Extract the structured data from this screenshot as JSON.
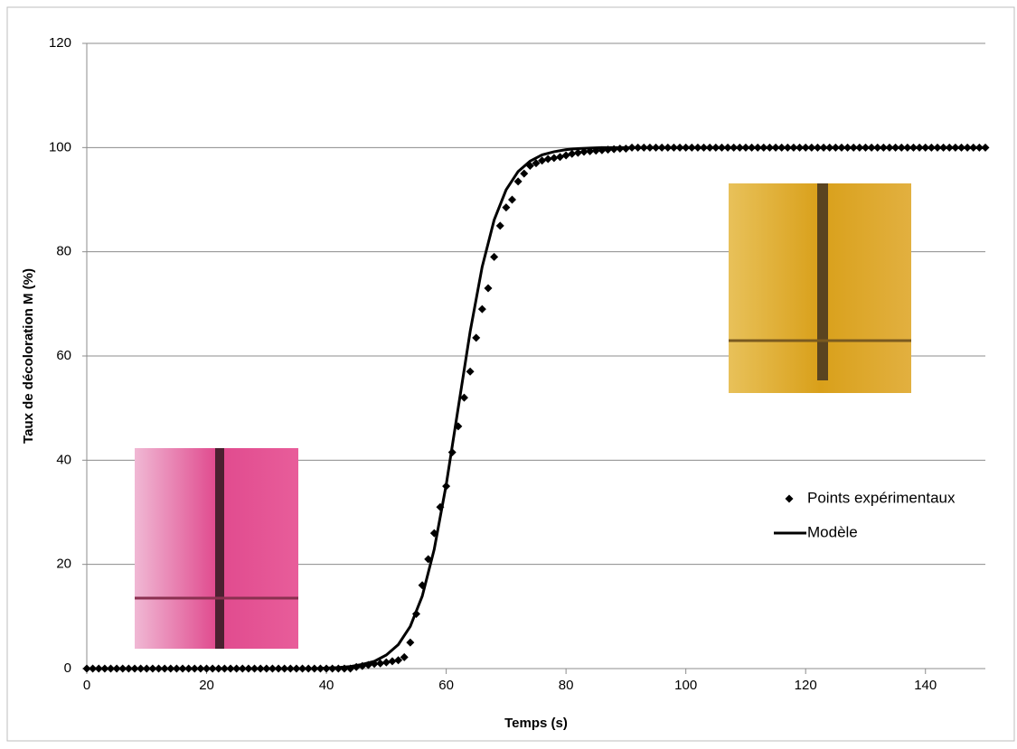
{
  "chart_data": {
    "type": "scatter",
    "xlabel": "Temps (s)",
    "ylabel": "Taux de décoloration M (%)",
    "xlim": [
      0,
      150
    ],
    "xticks": [
      0,
      20,
      40,
      60,
      80,
      100,
      120,
      140
    ],
    "ylim": [
      0,
      120
    ],
    "yticks": [
      0,
      20,
      40,
      60,
      80,
      100,
      120
    ],
    "grid": true,
    "legend": "right",
    "series": [
      {
        "name": "Points expérimentaux",
        "type": "scatter",
        "color": "#000000",
        "x": [
          0,
          1,
          2,
          3,
          4,
          5,
          6,
          7,
          8,
          9,
          10,
          11,
          12,
          13,
          14,
          15,
          16,
          17,
          18,
          19,
          20,
          21,
          22,
          23,
          24,
          25,
          26,
          27,
          28,
          29,
          30,
          31,
          32,
          33,
          34,
          35,
          36,
          37,
          38,
          39,
          40,
          41,
          42,
          43,
          44,
          45,
          46,
          47,
          48,
          49,
          50,
          51,
          52,
          53,
          54,
          55,
          56,
          57,
          58,
          59,
          60,
          61,
          62,
          63,
          64,
          65,
          66,
          67,
          68,
          69,
          70,
          71,
          72,
          73,
          74,
          75,
          76,
          77,
          78,
          79,
          80,
          81,
          82,
          83,
          84,
          85,
          86,
          87,
          88,
          89,
          90,
          91,
          92,
          93,
          94,
          95,
          96,
          97,
          98,
          99,
          100,
          101,
          102,
          103,
          104,
          105,
          106,
          107,
          108,
          109,
          110,
          111,
          112,
          113,
          114,
          115,
          116,
          117,
          118,
          119,
          120,
          121,
          122,
          123,
          124,
          125,
          126,
          127,
          128,
          129,
          130,
          131,
          132,
          133,
          134,
          135,
          136,
          137,
          138,
          139,
          140,
          141,
          142,
          143,
          144,
          145,
          146,
          147,
          148,
          149,
          150
        ],
        "values": [
          0,
          0,
          0,
          0,
          0,
          0,
          0,
          0,
          0,
          0,
          0,
          0,
          0,
          0,
          0,
          0,
          0,
          0,
          0,
          0,
          0,
          0,
          0,
          0,
          0,
          0,
          0,
          0,
          0,
          0,
          0,
          0,
          0,
          0,
          0,
          0,
          0,
          0,
          0,
          0,
          0,
          0,
          0,
          0,
          0,
          0.3,
          0.5,
          0.7,
          0.9,
          1,
          1.2,
          1.4,
          1.6,
          2.2,
          5,
          10.5,
          16,
          21,
          26,
          31,
          35,
          41.5,
          46.5,
          52,
          57,
          63.5,
          69,
          73,
          79,
          85,
          88.5,
          90,
          93.5,
          95,
          96.5,
          97,
          97.5,
          97.8,
          98,
          98.2,
          98.5,
          98.8,
          99,
          99.2,
          99.3,
          99.4,
          99.5,
          99.6,
          99.7,
          99.8,
          99.8,
          100,
          100,
          100,
          100,
          100,
          100,
          100,
          100,
          100,
          100,
          100,
          100,
          100,
          100,
          100,
          100,
          100,
          100,
          100,
          100,
          100,
          100,
          100,
          100,
          100,
          100,
          100,
          100,
          100,
          100,
          100,
          100,
          100,
          100,
          100,
          100,
          100,
          100,
          100,
          100,
          100,
          100,
          100,
          100,
          100,
          100,
          100,
          100,
          100,
          100,
          100,
          100,
          100,
          100,
          100,
          100,
          100,
          100,
          100,
          100
        ]
      },
      {
        "name": "Modèle",
        "type": "line",
        "color": "#000000",
        "x": [
          0,
          2,
          4,
          6,
          8,
          10,
          12,
          14,
          16,
          18,
          20,
          22,
          24,
          26,
          28,
          30,
          32,
          34,
          36,
          38,
          40,
          42,
          44,
          46,
          48,
          50,
          52,
          54,
          56,
          58,
          60,
          62,
          64,
          66,
          68,
          70,
          72,
          74,
          76,
          78,
          80,
          82,
          84,
          86,
          88,
          90,
          92,
          94,
          96,
          98,
          100,
          102,
          104,
          106,
          108,
          110,
          112,
          114,
          116,
          118,
          120,
          122,
          124,
          126,
          128,
          130,
          132,
          134,
          136,
          138,
          140,
          142,
          144,
          146,
          148,
          150
        ],
        "values": [
          0,
          0,
          0,
          0,
          0,
          0,
          0,
          0,
          0,
          0,
          0,
          0,
          0,
          0,
          0,
          0,
          0,
          0,
          0,
          0,
          0.1,
          0.2,
          0.4,
          0.8,
          1.4,
          2.6,
          4.6,
          8.1,
          13.9,
          22.9,
          35.3,
          50,
          64.7,
          77.1,
          86.1,
          91.9,
          95.4,
          97.4,
          98.6,
          99.2,
          99.6,
          99.8,
          99.9,
          100,
          100,
          100,
          100,
          100,
          100,
          100,
          100,
          100,
          100,
          100,
          100,
          100,
          100,
          100,
          100,
          100,
          100,
          100,
          100,
          100,
          100,
          100,
          100,
          100,
          100,
          100,
          100,
          100,
          100,
          100,
          100,
          100
        ]
      }
    ]
  }
}
